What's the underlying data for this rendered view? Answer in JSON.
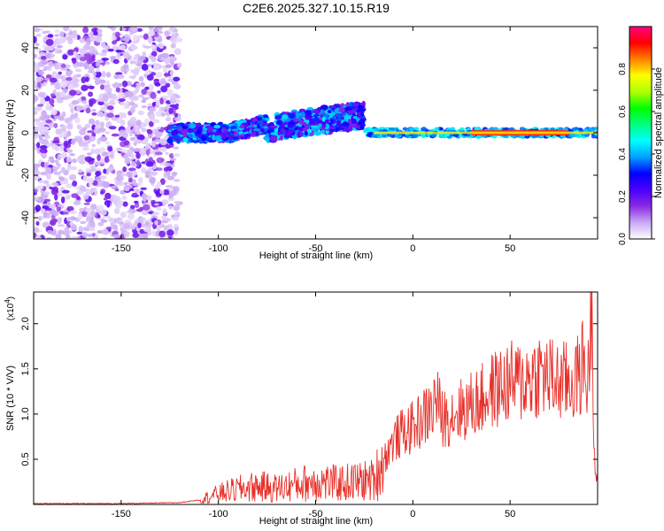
{
  "title": "C2E6.2025.327.10.15.R19",
  "chart_data": [
    {
      "type": "heatmap",
      "xlabel": "Height of straight line (km)",
      "ylabel": "Frequency (Hz)",
      "xlim": [
        -195,
        95
      ],
      "ylim": [
        -50,
        50
      ],
      "xticks": [
        -150,
        -100,
        -50,
        0,
        50
      ],
      "yticks": [
        -40,
        -20,
        0,
        20,
        40
      ],
      "colorbar": {
        "label": "Normalized spectral amplitude",
        "range": [
          0,
          1
        ],
        "ticks": [
          0.0,
          0.2,
          0.4,
          0.6,
          0.8
        ],
        "colors": [
          "#ffffff",
          "#c9a9f5",
          "#8a2be2",
          "#4b00ff",
          "#0000ff",
          "#00a0ff",
          "#00ffff",
          "#00ff80",
          "#00ff00",
          "#b0ff00",
          "#ffff00",
          "#ff8000",
          "#ff0000",
          "#ff0080"
        ]
      },
      "features": [
        {
          "x_range": [
            -195,
            -120
          ],
          "y_range": [
            -50,
            50
          ],
          "level": 0.1
        },
        {
          "x_range": [
            -125,
            -25
          ],
          "y_range": [
            -6,
            12
          ],
          "level": 0.35
        },
        {
          "x_range": [
            -25,
            95
          ],
          "y_range": [
            -3,
            3
          ],
          "level": 0.85
        }
      ]
    },
    {
      "type": "line",
      "xlabel": "Height of straight line (km)",
      "ylabel": "SNR (10 * V/V)",
      "y_multiplier": "(x10",
      "y_multiplier_exp": "4",
      "y_multiplier_close": ")",
      "xlim": [
        -195,
        95
      ],
      "ylim": [
        0,
        2.35
      ],
      "xticks": [
        -150,
        -100,
        -50,
        0,
        50
      ],
      "yticks": [
        0.5,
        1.0,
        1.5,
        2.0
      ],
      "series": [
        {
          "color": "#e8302a",
          "x": [
            -195,
            -150,
            -120,
            -110,
            -100,
            -90,
            -80,
            -70,
            -60,
            -50,
            -40,
            -30,
            -20,
            -15,
            -10,
            -5,
            0,
            5,
            10,
            12,
            15,
            20,
            25,
            30,
            35,
            40,
            45,
            50,
            55,
            60,
            65,
            70,
            75,
            80,
            85,
            88,
            90,
            92,
            93,
            94
          ],
          "values": [
            0.01,
            0.01,
            0.02,
            0.05,
            0.12,
            0.17,
            0.2,
            0.18,
            0.22,
            0.26,
            0.23,
            0.25,
            0.27,
            0.5,
            0.7,
            0.8,
            0.85,
            0.95,
            1.05,
            1.2,
            0.95,
            1.0,
            1.05,
            1.1,
            1.15,
            1.25,
            1.3,
            1.35,
            1.35,
            1.4,
            1.45,
            1.4,
            1.35,
            1.35,
            1.4,
            1.6,
            1.3,
            2.35,
            1.0,
            0.3
          ]
        }
      ]
    }
  ]
}
